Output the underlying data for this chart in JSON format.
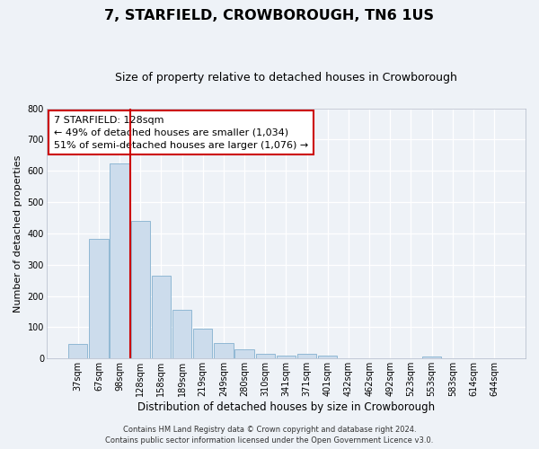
{
  "title": "7, STARFIELD, CROWBOROUGH, TN6 1US",
  "subtitle": "Size of property relative to detached houses in Crowborough",
  "xlabel": "Distribution of detached houses by size in Crowborough",
  "ylabel": "Number of detached properties",
  "bar_color": "#ccdcec",
  "bar_edgecolor": "#90b8d4",
  "categories": [
    "37sqm",
    "67sqm",
    "98sqm",
    "128sqm",
    "158sqm",
    "189sqm",
    "219sqm",
    "249sqm",
    "280sqm",
    "310sqm",
    "341sqm",
    "371sqm",
    "401sqm",
    "432sqm",
    "462sqm",
    "492sqm",
    "523sqm",
    "553sqm",
    "583sqm",
    "614sqm",
    "644sqm"
  ],
  "bar_values": [
    48,
    383,
    624,
    440,
    265,
    157,
    95,
    50,
    30,
    15,
    10,
    14,
    10,
    0,
    0,
    0,
    0,
    8,
    0,
    0,
    0
  ],
  "ylim": [
    0,
    800
  ],
  "yticks": [
    0,
    100,
    200,
    300,
    400,
    500,
    600,
    700,
    800
  ],
  "vline_color": "#cc0000",
  "annotation_title": "7 STARFIELD: 128sqm",
  "annotation_line1": "← 49% of detached houses are smaller (1,034)",
  "annotation_line2": "51% of semi-detached houses are larger (1,076) →",
  "annotation_box_edgecolor": "#cc0000",
  "footer_line1": "Contains HM Land Registry data © Crown copyright and database right 2024.",
  "footer_line2": "Contains public sector information licensed under the Open Government Licence v3.0.",
  "background_color": "#eef2f7",
  "grid_color": "#ffffff",
  "title_fontsize": 11.5,
  "subtitle_fontsize": 9,
  "xlabel_fontsize": 8.5,
  "ylabel_fontsize": 8,
  "tick_fontsize": 7,
  "annotation_fontsize": 8,
  "footer_fontsize": 6
}
